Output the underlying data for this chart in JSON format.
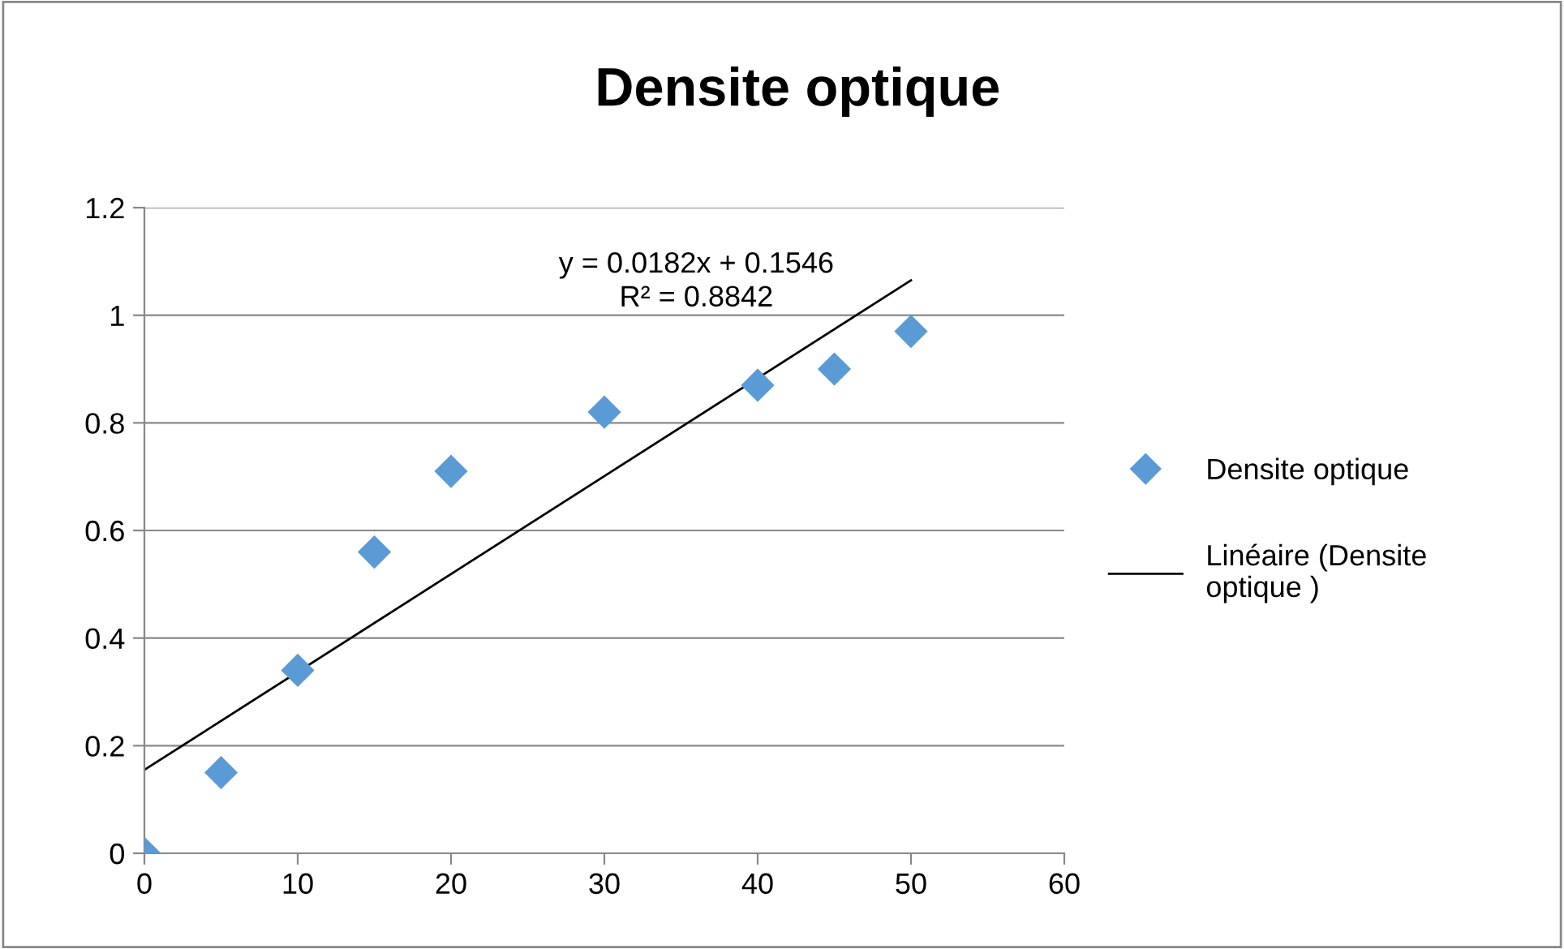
{
  "chart_data": {
    "type": "scatter",
    "title": "Densite optique",
    "series": [
      {
        "name": "Densite optique",
        "color": "#5b9bd5",
        "marker": "diamond",
        "x": [
          0,
          5,
          10,
          15,
          20,
          30,
          40,
          45,
          50
        ],
        "values": [
          0,
          0.15,
          0.34,
          0.56,
          0.71,
          0.82,
          0.87,
          0.9,
          0.97
        ]
      },
      {
        "name": "Linéaire (Densite optique )",
        "type": "line",
        "color": "#000000",
        "marker": "none",
        "line_style": "solid",
        "x": [
          0,
          50
        ],
        "values": [
          0.155,
          1.065
        ]
      }
    ],
    "annotations": [
      "y = 0.0182x + 0.1546\nR² = 0.8842"
    ],
    "xlim": [
      0,
      60
    ],
    "xticks": [
      0,
      10,
      20,
      30,
      40,
      50,
      60
    ],
    "ylim": [
      0,
      1.2
    ],
    "yticks": [
      0,
      0.2,
      0.4,
      0.6,
      0.8,
      1,
      1.2
    ],
    "grid": "y",
    "legend": "right"
  }
}
